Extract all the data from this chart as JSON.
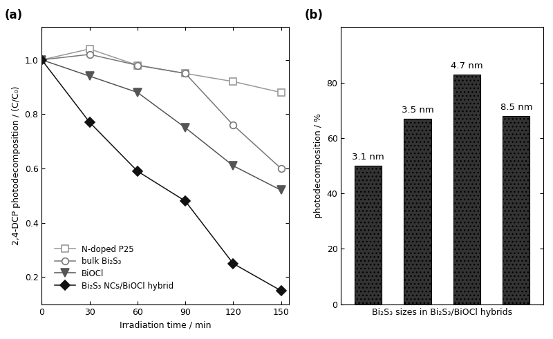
{
  "panel_a": {
    "label": "(a)",
    "xlabel": "Irradiation time / min",
    "ylabel": "2,4-DCP photodecomposition / (C/C₀)",
    "xlim": [
      0,
      155
    ],
    "ylim": [
      0.1,
      1.12
    ],
    "xticks": [
      0,
      30,
      60,
      90,
      120,
      150
    ],
    "yticks": [
      0.2,
      0.4,
      0.6,
      0.8,
      1.0
    ],
    "series": [
      {
        "label": "N-doped P25",
        "x": [
          0,
          30,
          60,
          90,
          120,
          150
        ],
        "y": [
          1.0,
          1.04,
          0.98,
          0.95,
          0.92,
          0.88
        ],
        "color": "#999999",
        "marker": "s",
        "markersize": 7,
        "linestyle": "-",
        "filled": false
      },
      {
        "label": "bulk Bi₂S₃",
        "x": [
          0,
          30,
          60,
          90,
          120,
          150
        ],
        "y": [
          1.0,
          1.02,
          0.98,
          0.95,
          0.76,
          0.6
        ],
        "color": "#777777",
        "marker": "o",
        "markersize": 7,
        "linestyle": "-",
        "filled": false
      },
      {
        "label": "BiOCl",
        "x": [
          0,
          30,
          60,
          90,
          120,
          150
        ],
        "y": [
          1.0,
          0.94,
          0.88,
          0.75,
          0.61,
          0.52
        ],
        "color": "#555555",
        "marker": "v",
        "markersize": 8,
        "linestyle": "-",
        "filled": true
      },
      {
        "label": "Bi₂S₃ NCs/BiOCl hybrid",
        "x": [
          0,
          30,
          60,
          90,
          120,
          150
        ],
        "y": [
          1.0,
          0.77,
          0.59,
          0.48,
          0.25,
          0.15
        ],
        "color": "#111111",
        "marker": "D",
        "markersize": 7,
        "linestyle": "-",
        "filled": true
      }
    ]
  },
  "panel_b": {
    "label": "(b)",
    "xlabel": "Bi₂S₃ sizes in Bi₂S₃/BiOCl hybrids",
    "ylabel": "photodecomposition / %",
    "ylim": [
      0,
      100
    ],
    "yticks": [
      0,
      20,
      40,
      60,
      80
    ],
    "bars": [
      {
        "label": "3.1 nm",
        "value": 50
      },
      {
        "label": "3.5 nm",
        "value": 67
      },
      {
        "label": "4.7 nm",
        "value": 83
      },
      {
        "label": "8.5 nm",
        "value": 68
      }
    ],
    "bar_color": "#333333",
    "bar_edgecolor": "#000000",
    "bar_width": 0.55
  }
}
